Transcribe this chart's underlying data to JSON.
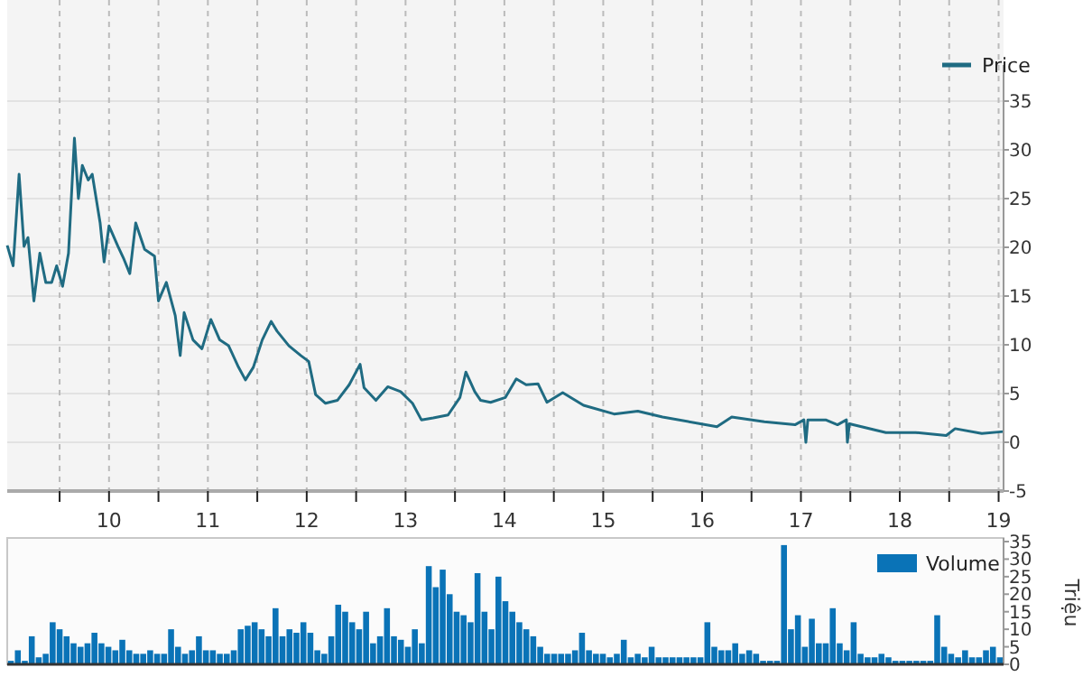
{
  "chart_data": [
    {
      "type": "line",
      "xlim": [
        8.97,
        19.05
      ],
      "ylim": [
        -5,
        35
      ],
      "yticks": [
        -5,
        0,
        5,
        10,
        15,
        20,
        25,
        30,
        35
      ],
      "xticks": [
        {
          "value": 9.5,
          "label": null
        },
        10,
        {
          "value": 10.5,
          "label": null
        },
        11,
        {
          "value": 11.5,
          "label": null
        },
        12,
        {
          "value": 12.5,
          "label": null
        },
        13,
        {
          "value": 13.5,
          "label": null
        },
        14,
        {
          "value": 14.5,
          "label": null
        },
        15,
        {
          "value": 15.5,
          "label": null
        },
        16,
        {
          "value": 16.5,
          "label": null
        },
        17,
        {
          "value": 17.5,
          "label": null
        },
        18,
        {
          "value": 18.5,
          "label": null
        },
        19
      ],
      "grid": true,
      "legend": "top right",
      "line_style": "solid",
      "series": [
        {
          "name": "Price",
          "color": "#1f6b82",
          "x": [
            8.97,
            9.03,
            9.09,
            9.14,
            9.18,
            9.24,
            9.3,
            9.36,
            9.42,
            9.47,
            9.53,
            9.59,
            9.65,
            9.69,
            9.73,
            9.79,
            9.83,
            9.91,
            9.95,
            10.0,
            10.09,
            10.15,
            10.21,
            10.27,
            10.36,
            10.46,
            10.5,
            10.58,
            10.67,
            10.72,
            10.76,
            10.85,
            10.94,
            11.03,
            11.12,
            11.21,
            11.31,
            11.38,
            11.46,
            11.55,
            11.64,
            11.7,
            11.82,
            11.94,
            12.02,
            12.09,
            12.19,
            12.31,
            12.43,
            12.54,
            12.58,
            12.7,
            12.82,
            12.95,
            13.07,
            13.16,
            13.28,
            13.43,
            13.55,
            13.61,
            13.7,
            13.76,
            13.86,
            14.01,
            14.12,
            14.22,
            14.34,
            14.43,
            14.59,
            14.8,
            15.11,
            15.35,
            15.6,
            16.15,
            16.3,
            16.63,
            16.94,
            17.03,
            17.05,
            17.07,
            17.25,
            17.37,
            17.46,
            17.47,
            17.49,
            17.86,
            18.16,
            18.47,
            18.56,
            18.83,
            19.05
          ],
          "values": [
            20.2,
            18.1,
            27.5,
            20.1,
            21.0,
            14.5,
            19.4,
            16.4,
            16.4,
            18.1,
            16.0,
            19.4,
            31.2,
            25.0,
            28.4,
            26.9,
            27.5,
            22.5,
            18.5,
            22.2,
            20.1,
            18.8,
            17.3,
            22.5,
            19.8,
            19.1,
            14.5,
            16.4,
            13.0,
            8.9,
            13.3,
            10.5,
            9.6,
            12.6,
            10.5,
            9.9,
            7.7,
            6.4,
            7.7,
            10.5,
            12.4,
            11.4,
            9.9,
            8.9,
            8.3,
            4.9,
            4.0,
            4.3,
            5.9,
            8.0,
            5.6,
            4.3,
            5.7,
            5.2,
            4.0,
            2.3,
            2.5,
            2.8,
            4.6,
            7.2,
            5.2,
            4.3,
            4.1,
            4.6,
            6.5,
            5.9,
            6.0,
            4.1,
            5.1,
            3.8,
            2.9,
            3.2,
            2.6,
            1.6,
            2.6,
            2.1,
            1.8,
            2.3,
            0,
            2.3,
            2.3,
            1.8,
            2.3,
            0,
            1.9,
            1.0,
            1.0,
            0.7,
            1.4,
            0.9,
            1.1
          ]
        }
      ]
    },
    {
      "type": "bar",
      "ylabel": "Triệu",
      "ylim": [
        0,
        35
      ],
      "yticks": [
        0,
        5,
        10,
        15,
        20,
        25,
        30,
        35
      ],
      "legend": "top right",
      "categories": [
        null,
        null,
        null,
        null,
        null,
        null,
        null,
        null,
        null,
        null,
        null,
        null,
        null,
        null,
        null,
        null,
        null,
        null,
        null,
        null,
        null,
        null,
        null,
        null,
        null,
        null,
        null,
        null,
        null,
        null,
        null,
        null,
        null,
        null,
        null,
        null,
        null,
        null,
        null,
        null,
        null,
        null,
        null,
        null,
        null,
        null,
        null,
        null,
        null,
        null,
        null,
        null,
        null,
        null,
        null,
        null,
        null,
        null,
        null,
        null,
        null,
        null,
        null,
        null,
        null,
        null,
        null,
        null,
        null,
        null,
        null,
        null,
        null,
        null,
        null,
        null,
        null,
        null,
        null,
        null,
        null,
        null,
        null,
        null,
        null,
        null,
        null,
        null,
        null,
        null,
        null,
        null,
        null,
        null,
        null,
        null,
        null,
        null,
        null,
        null,
        null,
        null,
        null,
        null,
        null,
        null,
        null,
        null,
        null,
        null,
        null,
        null,
        null,
        null,
        null,
        null,
        null,
        null,
        null,
        null,
        null,
        null,
        null,
        null,
        null,
        null,
        null,
        null,
        null,
        null,
        null,
        null,
        null,
        null,
        null,
        null,
        null,
        null,
        null,
        null,
        null,
        null,
        null
      ],
      "series": [
        {
          "name": "Volume",
          "color": "#0a73b7",
          "values": [
            1,
            4,
            1,
            8,
            2,
            3,
            12,
            10,
            8,
            6,
            5,
            6,
            9,
            6,
            5,
            4,
            7,
            4,
            3,
            3,
            4,
            3,
            3,
            10,
            5,
            3,
            4,
            8,
            4,
            4,
            3,
            3,
            4,
            10,
            11,
            12,
            10,
            8,
            16,
            8,
            10,
            9,
            12,
            9,
            4,
            3,
            8,
            17,
            15,
            12,
            10,
            15,
            6,
            8,
            16,
            8,
            7,
            5,
            10,
            6,
            28,
            22,
            27,
            20,
            15,
            14,
            12,
            26,
            15,
            10,
            25,
            18,
            15,
            12,
            10,
            8,
            5,
            3,
            3,
            3,
            3,
            4,
            9,
            4,
            3,
            3,
            2,
            3,
            7,
            2,
            3,
            2,
            5,
            2,
            2,
            2,
            2,
            2,
            2,
            2,
            12,
            5,
            4,
            4,
            6,
            3,
            4,
            3,
            1,
            1,
            1,
            34,
            10,
            14,
            5,
            13,
            6,
            6,
            16,
            6,
            4,
            12,
            3,
            2,
            2,
            3,
            2,
            1,
            1,
            1,
            1,
            1,
            1,
            14,
            5,
            3,
            2,
            4,
            2,
            2,
            4,
            5,
            2
          ]
        }
      ]
    }
  ]
}
